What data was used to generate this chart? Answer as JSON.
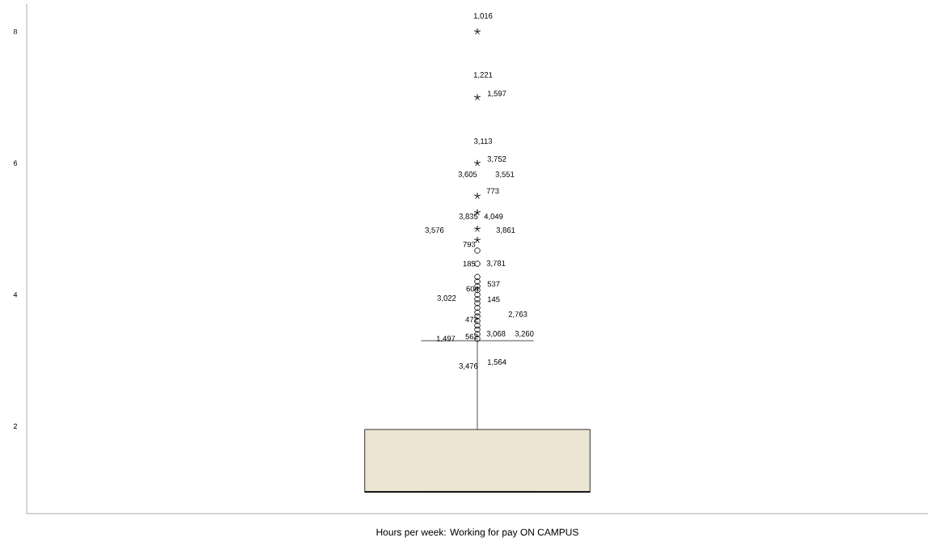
{
  "chart_data": {
    "type": "box",
    "categories": [
      null
    ],
    "xlabel": "Hours per week: Working for pay ON CAMPUS",
    "color": "#ebe5d1",
    "boxes": [
      {
        "low": 1,
        "q1": 1,
        "median": 1,
        "q3": 1.95,
        "high": 3.3,
        "outliers": [
          3.33,
          3.4,
          3.47,
          3.53,
          3.6,
          3.67,
          3.73,
          3.8,
          3.87,
          3.93,
          4.0,
          4.07,
          4.13,
          4.2,
          4.27,
          4.47,
          4.67,
          4.83,
          5.0,
          5.25,
          5.5,
          6.0,
          7.0,
          8.0
        ]
      }
    ],
    "ylim": [
      0.67,
      8.42
    ],
    "yticks": [
      2,
      4,
      6,
      8
    ],
    "tick_labels": "y",
    "grid": false,
    "annotations": [
      "1,016",
      "1,221",
      "1,597",
      "3,113",
      "3,752",
      "3,605",
      "3,551",
      "773",
      "3,835",
      "4,049",
      "3,576",
      "3,861",
      "793",
      "185",
      "3,781",
      "604",
      "537",
      "3,022",
      "145",
      "472",
      "2,763",
      "1,497",
      "562",
      "3,068",
      "3,260",
      "3,476",
      "1,564"
    ]
  }
}
